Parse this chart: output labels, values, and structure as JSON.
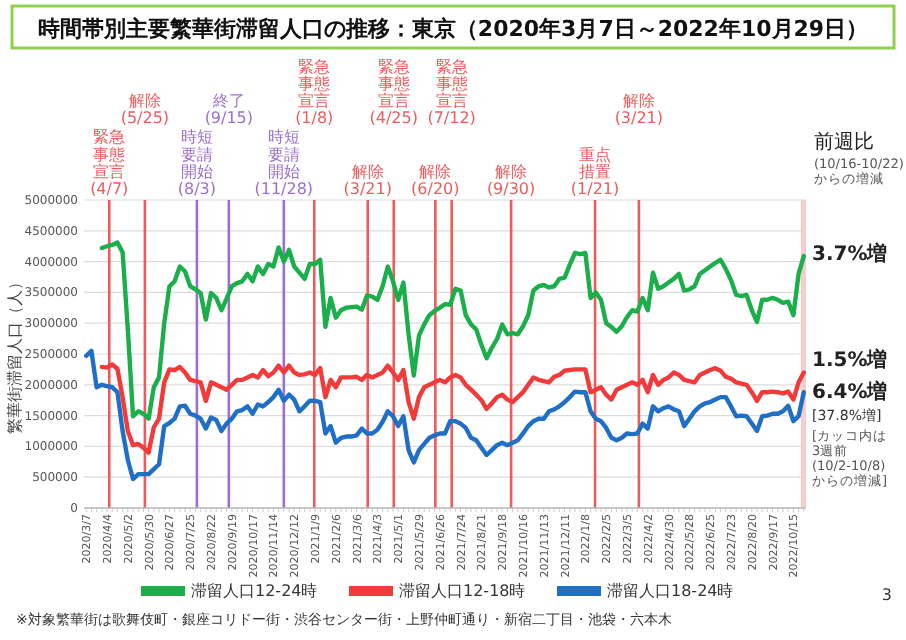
{
  "chart_data": {
    "type": "line",
    "title": "時間帯別主要繁華街滞留人口の推移：東京（2020年3月7日～2022年10月29日）",
    "ylabel": "繁華街滞留人口（人）",
    "x": [
      "2020-03-07",
      "2020-03-14",
      "2020-03-21",
      "2020-03-28",
      "2020-04-04",
      "2020-04-11",
      "2020-04-18",
      "2020-04-25",
      "2020-05-02",
      "2020-05-09",
      "2020-05-16",
      "2020-05-23",
      "2020-05-30",
      "2020-06-06",
      "2020-06-13",
      "2020-06-20",
      "2020-06-27",
      "2020-07-04",
      "2020-07-11",
      "2020-07-18",
      "2020-07-25",
      "2020-08-01",
      "2020-08-08",
      "2020-08-15",
      "2020-08-22",
      "2020-08-29",
      "2020-09-05",
      "2020-09-12",
      "2020-09-19",
      "2020-09-26",
      "2020-10-03",
      "2020-10-10",
      "2020-10-17",
      "2020-10-24",
      "2020-10-31",
      "2020-11-07",
      "2020-11-14",
      "2020-11-21",
      "2020-11-28",
      "2020-12-05",
      "2020-12-12",
      "2020-12-19",
      "2020-12-26",
      "2021-01-02",
      "2021-01-09",
      "2021-01-16",
      "2021-01-23",
      "2021-01-30",
      "2021-02-06",
      "2021-02-13",
      "2021-02-20",
      "2021-02-27",
      "2021-03-06",
      "2021-03-13",
      "2021-03-20",
      "2021-03-27",
      "2021-04-03",
      "2021-04-10",
      "2021-04-17",
      "2021-04-24",
      "2021-05-01",
      "2021-05-08",
      "2021-05-15",
      "2021-05-22",
      "2021-05-29",
      "2021-06-05",
      "2021-06-12",
      "2021-06-19",
      "2021-06-26",
      "2021-07-03",
      "2021-07-10",
      "2021-07-17",
      "2021-07-24",
      "2021-07-31",
      "2021-08-07",
      "2021-08-14",
      "2021-08-21",
      "2021-08-28",
      "2021-09-04",
      "2021-09-11",
      "2021-09-18",
      "2021-09-25",
      "2021-10-02",
      "2021-10-09",
      "2021-10-16",
      "2021-10-23",
      "2021-10-30",
      "2021-11-06",
      "2021-11-13",
      "2021-11-20",
      "2021-11-27",
      "2021-12-04",
      "2021-12-11",
      "2021-12-18",
      "2021-12-25",
      "2022-01-01",
      "2022-01-08",
      "2022-01-15",
      "2022-01-22",
      "2022-01-29",
      "2022-02-05",
      "2022-02-12",
      "2022-02-19",
      "2022-02-26",
      "2022-03-05",
      "2022-03-12",
      "2022-03-19",
      "2022-03-26",
      "2022-04-02",
      "2022-04-09",
      "2022-04-16",
      "2022-04-23",
      "2022-04-30",
      "2022-05-07",
      "2022-05-14",
      "2022-05-21",
      "2022-05-28",
      "2022-06-04",
      "2022-06-11",
      "2022-06-18",
      "2022-06-25",
      "2022-07-02",
      "2022-07-09",
      "2022-07-16",
      "2022-07-23",
      "2022-07-30",
      "2022-08-06",
      "2022-08-13",
      "2022-08-20",
      "2022-08-27",
      "2022-09-03",
      "2022-09-10",
      "2022-09-17",
      "2022-09-24",
      "2022-10-01",
      "2022-10-08",
      "2022-10-15",
      "2022-10-22",
      "2022-10-29"
    ],
    "xlim": [
      "2020-03-04",
      "2022-11-01"
    ],
    "xticks": [
      {
        "value": "2020-03-07",
        "label": "2020/3/7"
      },
      {
        "value": "2020-03-14",
        "label": null
      },
      {
        "value": "2020-03-21",
        "label": null
      },
      {
        "value": "2020-03-28",
        "label": null
      },
      {
        "value": "2020-04-04",
        "label": "2020/4/4"
      },
      {
        "value": "2020-04-11",
        "label": null
      },
      {
        "value": "2020-04-18",
        "label": null
      },
      {
        "value": "2020-04-25",
        "label": null
      },
      {
        "value": "2020-05-02",
        "label": "2020/5/2"
      },
      {
        "value": "2020-05-09",
        "label": null
      },
      {
        "value": "2020-05-16",
        "label": null
      },
      {
        "value": "2020-05-23",
        "label": null
      },
      {
        "value": "2020-05-30",
        "label": "2020/5/30"
      },
      {
        "value": "2020-06-06",
        "label": null
      },
      {
        "value": "2020-06-13",
        "label": null
      },
      {
        "value": "2020-06-20",
        "label": null
      },
      {
        "value": "2020-06-27",
        "label": "2020/6/27"
      },
      {
        "value": "2020-07-04",
        "label": null
      },
      {
        "value": "2020-07-11",
        "label": null
      },
      {
        "value": "2020-07-18",
        "label": null
      },
      {
        "value": "2020-07-25",
        "label": "2020/7/25"
      },
      {
        "value": "2020-08-01",
        "label": null
      },
      {
        "value": "2020-08-08",
        "label": null
      },
      {
        "value": "2020-08-15",
        "label": null
      },
      {
        "value": "2020-08-22",
        "label": "2020/8/22"
      },
      {
        "value": "2020-08-29",
        "label": null
      },
      {
        "value": "2020-09-05",
        "label": null
      },
      {
        "value": "2020-09-12",
        "label": null
      },
      {
        "value": "2020-09-19",
        "label": "2020/9/19"
      },
      {
        "value": "2020-09-26",
        "label": null
      },
      {
        "value": "2020-10-03",
        "label": null
      },
      {
        "value": "2020-10-10",
        "label": null
      },
      {
        "value": "2020-10-17",
        "label": "2020/10/17"
      },
      {
        "value": "2020-10-24",
        "label": null
      },
      {
        "value": "2020-10-31",
        "label": null
      },
      {
        "value": "2020-11-07",
        "label": null
      },
      {
        "value": "2020-11-14",
        "label": "2020/11/14"
      },
      {
        "value": "2020-11-21",
        "label": null
      },
      {
        "value": "2020-11-28",
        "label": null
      },
      {
        "value": "2020-12-05",
        "label": null
      },
      {
        "value": "2020-12-12",
        "label": "2020/12/12"
      },
      {
        "value": "2020-12-19",
        "label": null
      },
      {
        "value": "2020-12-26",
        "label": null
      },
      {
        "value": "2021-01-02",
        "label": null
      },
      {
        "value": "2021-01-09",
        "label": "2021/1/9"
      },
      {
        "value": "2021-01-16",
        "label": null
      },
      {
        "value": "2021-01-23",
        "label": null
      },
      {
        "value": "2021-01-30",
        "label": null
      },
      {
        "value": "2021-02-06",
        "label": "2021/2/6"
      },
      {
        "value": "2021-02-13",
        "label": null
      },
      {
        "value": "2021-02-20",
        "label": null
      },
      {
        "value": "2021-02-27",
        "label": null
      },
      {
        "value": "2021-03-06",
        "label": "2021/3/6"
      },
      {
        "value": "2021-03-13",
        "label": null
      },
      {
        "value": "2021-03-20",
        "label": null
      },
      {
        "value": "2021-03-27",
        "label": null
      },
      {
        "value": "2021-04-03",
        "label": "2021/4/3"
      },
      {
        "value": "2021-04-10",
        "label": null
      },
      {
        "value": "2021-04-17",
        "label": null
      },
      {
        "value": "2021-04-24",
        "label": null
      },
      {
        "value": "2021-05-01",
        "label": "2021/5/1"
      },
      {
        "value": "2021-05-08",
        "label": null
      },
      {
        "value": "2021-05-15",
        "label": null
      },
      {
        "value": "2021-05-22",
        "label": null
      },
      {
        "value": "2021-05-29",
        "label": "2021/5/29"
      },
      {
        "value": "2021-06-05",
        "label": null
      },
      {
        "value": "2021-06-12",
        "label": null
      },
      {
        "value": "2021-06-19",
        "label": null
      },
      {
        "value": "2021-06-26",
        "label": "2021/6/26"
      },
      {
        "value": "2021-07-03",
        "label": null
      },
      {
        "value": "2021-07-10",
        "label": null
      },
      {
        "value": "2021-07-17",
        "label": null
      },
      {
        "value": "2021-07-24",
        "label": "2021/7/24"
      },
      {
        "value": "2021-07-31",
        "label": null
      },
      {
        "value": "2021-08-07",
        "label": null
      },
      {
        "value": "2021-08-14",
        "label": null
      },
      {
        "value": "2021-08-21",
        "label": "2021/8/21"
      },
      {
        "value": "2021-08-28",
        "label": null
      },
      {
        "value": "2021-09-04",
        "label": null
      },
      {
        "value": "2021-09-11",
        "label": null
      },
      {
        "value": "2021-09-18",
        "label": "2021/9/18"
      },
      {
        "value": "2021-09-25",
        "label": null
      },
      {
        "value": "2021-10-02",
        "label": null
      },
      {
        "value": "2021-10-09",
        "label": null
      },
      {
        "value": "2021-10-16",
        "label": "2021/10/16"
      },
      {
        "value": "2021-10-23",
        "label": null
      },
      {
        "value": "2021-10-30",
        "label": null
      },
      {
        "value": "2021-11-06",
        "label": null
      },
      {
        "value": "2021-11-13",
        "label": "2021/11/13"
      },
      {
        "value": "2021-11-20",
        "label": null
      },
      {
        "value": "2021-11-27",
        "label": null
      },
      {
        "value": "2021-12-04",
        "label": null
      },
      {
        "value": "2021-12-11",
        "label": "2021/12/11"
      },
      {
        "value": "2021-12-18",
        "label": null
      },
      {
        "value": "2021-12-25",
        "label": null
      },
      {
        "value": "2022-01-01",
        "label": null
      },
      {
        "value": "2022-01-08",
        "label": "2022/1/8"
      },
      {
        "value": "2022-01-15",
        "label": null
      },
      {
        "value": "2022-01-22",
        "label": null
      },
      {
        "value": "2022-01-29",
        "label": null
      },
      {
        "value": "2022-02-05",
        "label": "2022/2/5"
      },
      {
        "value": "2022-02-12",
        "label": null
      },
      {
        "value": "2022-02-19",
        "label": null
      },
      {
        "value": "2022-02-26",
        "label": null
      },
      {
        "value": "2022-03-05",
        "label": "2022/3/5"
      },
      {
        "value": "2022-03-12",
        "label": null
      },
      {
        "value": "2022-03-19",
        "label": null
      },
      {
        "value": "2022-03-26",
        "label": null
      },
      {
        "value": "2022-04-02",
        "label": "2022/4/2"
      },
      {
        "value": "2022-04-09",
        "label": null
      },
      {
        "value": "2022-04-16",
        "label": null
      },
      {
        "value": "2022-04-23",
        "label": null
      },
      {
        "value": "2022-04-30",
        "label": "2022/4/30"
      },
      {
        "value": "2022-05-07",
        "label": null
      },
      {
        "value": "2022-05-14",
        "label": null
      },
      {
        "value": "2022-05-21",
        "label": null
      },
      {
        "value": "2022-05-28",
        "label": "2022/5/28"
      },
      {
        "value": "2022-06-04",
        "label": null
      },
      {
        "value": "2022-06-11",
        "label": null
      },
      {
        "value": "2022-06-18",
        "label": null
      },
      {
        "value": "2022-06-25",
        "label": "2022/6/25"
      },
      {
        "value": "2022-07-02",
        "label": null
      },
      {
        "value": "2022-07-09",
        "label": null
      },
      {
        "value": "2022-07-16",
        "label": null
      },
      {
        "value": "2022-07-23",
        "label": "2022/7/23"
      },
      {
        "value": "2022-07-30",
        "label": null
      },
      {
        "value": "2022-08-06",
        "label": null
      },
      {
        "value": "2022-08-13",
        "label": null
      },
      {
        "value": "2022-08-20",
        "label": "2022/8/20"
      },
      {
        "value": "2022-08-27",
        "label": null
      },
      {
        "value": "2022-09-03",
        "label": null
      },
      {
        "value": "2022-09-10",
        "label": null
      },
      {
        "value": "2022-09-17",
        "label": "2022/9/17"
      },
      {
        "value": "2022-09-24",
        "label": null
      },
      {
        "value": "2022-10-01",
        "label": null
      },
      {
        "value": "2022-10-08",
        "label": null
      },
      {
        "value": "2022-10-15",
        "label": "2022/10/15"
      },
      {
        "value": "2022-10-22",
        "label": null
      },
      {
        "value": "2022-10-29",
        "label": null
      }
    ],
    "series": [
      {
        "name": "滞留人口12-24時",
        "color": "#1aaf4b",
        "values": [
          null,
          null,
          null,
          4220000,
          4250000,
          4270000,
          4310000,
          4150000,
          2900000,
          1490000,
          1570000,
          1530000,
          1450000,
          1960000,
          2120000,
          3000000,
          3600000,
          3680000,
          3920000,
          3840000,
          3600000,
          3550000,
          3490000,
          3060000,
          3490000,
          3410000,
          3210000,
          3400000,
          3600000,
          3650000,
          3680000,
          3800000,
          3680000,
          3920000,
          3800000,
          3960000,
          3920000,
          4230000,
          4000000,
          4190000,
          3920000,
          3820000,
          3720000,
          3960000,
          3960000,
          4030000,
          2940000,
          3410000,
          3090000,
          3210000,
          3250000,
          3260000,
          3270000,
          3220000,
          3450000,
          3430000,
          3380000,
          3600000,
          3920000,
          3680000,
          3380000,
          3660000,
          2820000,
          2150000,
          2800000,
          2980000,
          3130000,
          3200000,
          3250000,
          3310000,
          3300000,
          3560000,
          3530000,
          3130000,
          2980000,
          2900000,
          2650000,
          2430000,
          2600000,
          2740000,
          2980000,
          2820000,
          2840000,
          2820000,
          2950000,
          3130000,
          3530000,
          3600000,
          3620000,
          3580000,
          3600000,
          3720000,
          3740000,
          3950000,
          4140000,
          4120000,
          4140000,
          3410000,
          3500000,
          3380000,
          3000000,
          2940000,
          2860000,
          2950000,
          3100000,
          3210000,
          3190000,
          3410000,
          3210000,
          3820000,
          3560000,
          3600000,
          3660000,
          3720000,
          3800000,
          3530000,
          3550000,
          3600000,
          3800000,
          3860000,
          3920000,
          3980000,
          4030000,
          3880000,
          3700000,
          3460000,
          3440000,
          3460000,
          3210000,
          3020000,
          3380000,
          3380000,
          3410000,
          3380000,
          3330000,
          3350000,
          3130000,
          3800000,
          4090000
        ]
      },
      {
        "name": "滞留人口12-18時",
        "color": "#f23a3a",
        "values": [
          null,
          null,
          null,
          2290000,
          2280000,
          2330000,
          2260000,
          1800000,
          1250000,
          1020000,
          1040000,
          980000,
          900000,
          1310000,
          1450000,
          2040000,
          2250000,
          2240000,
          2290000,
          2200000,
          2080000,
          2060000,
          2040000,
          1740000,
          2040000,
          2000000,
          1960000,
          1920000,
          2000000,
          2080000,
          2080000,
          2120000,
          2160000,
          2120000,
          2240000,
          2140000,
          2200000,
          2310000,
          2200000,
          2310000,
          2200000,
          2160000,
          2170000,
          2200000,
          2160000,
          2270000,
          1800000,
          2080000,
          1960000,
          2120000,
          2120000,
          2120000,
          2130000,
          2080000,
          2160000,
          2120000,
          2160000,
          2200000,
          2310000,
          2200000,
          2080000,
          2240000,
          1720000,
          1450000,
          1800000,
          1960000,
          2000000,
          2040000,
          2080000,
          2040000,
          2120000,
          2160000,
          2120000,
          2000000,
          1920000,
          1840000,
          1750000,
          1610000,
          1700000,
          1800000,
          1840000,
          1760000,
          1720000,
          1800000,
          1880000,
          2000000,
          2120000,
          2080000,
          2060000,
          2040000,
          2130000,
          2160000,
          2230000,
          2240000,
          2250000,
          2250000,
          2250000,
          1880000,
          1920000,
          1960000,
          1840000,
          1760000,
          1920000,
          1960000,
          2000000,
          2040000,
          2000000,
          2080000,
          1880000,
          2160000,
          2000000,
          2080000,
          2120000,
          2200000,
          2160000,
          2080000,
          2060000,
          2040000,
          2160000,
          2200000,
          2240000,
          2270000,
          2230000,
          2130000,
          2100000,
          2040000,
          2020000,
          2000000,
          1880000,
          1740000,
          1880000,
          1880000,
          1890000,
          1880000,
          1860000,
          1890000,
          1760000,
          2040000,
          2200000
        ]
      },
      {
        "name": "滞留人口18-24時",
        "color": "#1f6fc6",
        "values": [
          2470000,
          2550000,
          1960000,
          2000000,
          1980000,
          1960000,
          1880000,
          1250000,
          780000,
          470000,
          550000,
          550000,
          550000,
          630000,
          710000,
          1330000,
          1380000,
          1450000,
          1650000,
          1660000,
          1530000,
          1500000,
          1450000,
          1290000,
          1470000,
          1430000,
          1250000,
          1370000,
          1450000,
          1570000,
          1590000,
          1650000,
          1530000,
          1680000,
          1650000,
          1720000,
          1800000,
          1920000,
          1740000,
          1840000,
          1760000,
          1570000,
          1650000,
          1740000,
          1740000,
          1720000,
          1210000,
          1330000,
          1060000,
          1140000,
          1160000,
          1160000,
          1180000,
          1290000,
          1210000,
          1210000,
          1270000,
          1400000,
          1570000,
          1490000,
          1330000,
          1490000,
          940000,
          740000,
          940000,
          1040000,
          1140000,
          1180000,
          1210000,
          1210000,
          1410000,
          1410000,
          1370000,
          1300000,
          1140000,
          1100000,
          980000,
          860000,
          940000,
          1020000,
          1060000,
          1020000,
          1060000,
          1100000,
          1210000,
          1330000,
          1410000,
          1450000,
          1450000,
          1570000,
          1600000,
          1650000,
          1720000,
          1800000,
          1890000,
          1880000,
          1880000,
          1570000,
          1450000,
          1410000,
          1300000,
          1140000,
          1100000,
          1140000,
          1210000,
          1200000,
          1210000,
          1370000,
          1290000,
          1650000,
          1570000,
          1620000,
          1650000,
          1600000,
          1570000,
          1330000,
          1450000,
          1570000,
          1650000,
          1700000,
          1720000,
          1760000,
          1800000,
          1800000,
          1650000,
          1490000,
          1500000,
          1490000,
          1370000,
          1250000,
          1490000,
          1500000,
          1530000,
          1530000,
          1570000,
          1660000,
          1410000,
          1490000,
          1880000
        ]
      }
    ],
    "ylim": [
      0,
      5000000
    ],
    "yticks": [
      0,
      500000,
      1000000,
      1500000,
      2000000,
      2500000,
      3000000,
      3500000,
      4000000,
      4500000,
      5000000
    ],
    "grid": "y",
    "legend": "bottom",
    "ref_lines": [
      {
        "axis": "x",
        "value": "2020-04-07",
        "label": "緊急事態宣言(4/7)",
        "color": "#ef5b5b"
      },
      {
        "axis": "x",
        "value": "2020-05-25",
        "label": "解除(5/25)",
        "color": "#ef5b5b"
      },
      {
        "axis": "x",
        "value": "2020-08-03",
        "label": "時短要請開始(8/3)",
        "color": "#9b6fcf"
      },
      {
        "axis": "x",
        "value": "2020-09-15",
        "label": "終了(9/15)",
        "color": "#9b6fcf"
      },
      {
        "axis": "x",
        "value": "2020-11-28",
        "label": "時短要請開始(11/28)",
        "color": "#9b6fcf"
      },
      {
        "axis": "x",
        "value": "2021-01-08",
        "label": "緊急事態宣言(1/8)",
        "color": "#ef5b5b"
      },
      {
        "axis": "x",
        "value": "2021-03-21",
        "label": "解除(3/21)",
        "color": "#ef5b5b"
      },
      {
        "axis": "x",
        "value": "2021-04-25",
        "label": "緊急事態宣言(4/25)",
        "color": "#ef5b5b"
      },
      {
        "axis": "x",
        "value": "2021-06-20",
        "label": "解除(6/20)",
        "color": "#ef5b5b"
      },
      {
        "axis": "x",
        "value": "2021-07-12",
        "label": "緊急事態宣言(7/12)",
        "color": "#ef5b5b"
      },
      {
        "axis": "x",
        "value": "2021-09-30",
        "label": "解除(9/30)",
        "color": "#ef5b5b"
      },
      {
        "axis": "x",
        "value": "2022-01-21",
        "label": "重点措置(1/21)",
        "color": "#ef5b5b"
      },
      {
        "axis": "x",
        "value": "2022-03-21",
        "label": "解除(3/21)",
        "color": "#ef5b5b"
      }
    ],
    "bands": [
      {
        "axis": "x",
        "from": "2022-10-25",
        "to": "2022-11-01",
        "color": "#f7cccc"
      }
    ],
    "annotations": [
      "前週比",
      "(10/16-10/22)からの増減",
      "3.7%増",
      "1.5%増",
      "6.4%増",
      "[37.8%増]",
      "[カッコ内は3週前(10/2-10/8)からの増減]",
      "※対象繁華街は歌舞伎町・銀座コリドー街・渋谷センター街・上野仲町通り・新宿二丁目・池袋・六本木",
      "3"
    ]
  }
}
